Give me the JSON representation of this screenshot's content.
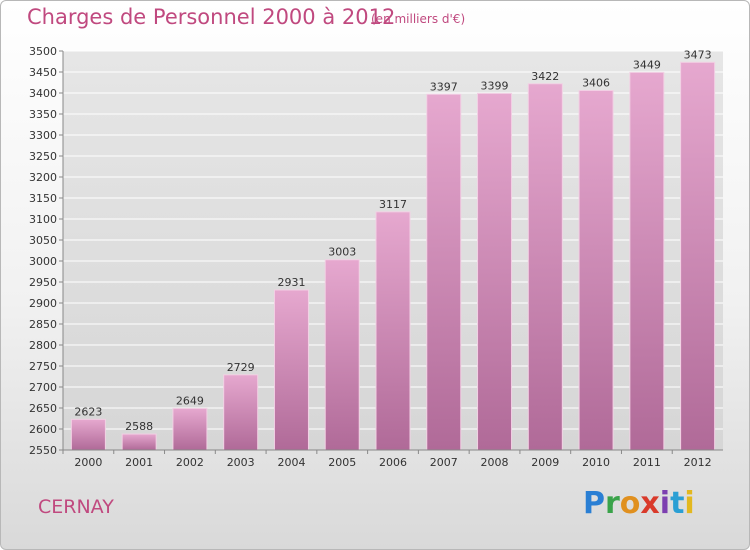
{
  "header": {
    "title": "Charges de Personnel 2000 à 2012",
    "subtitle": "(en milliers d'€)"
  },
  "footer": {
    "place": "CERNAY",
    "logo_text": "Proxiti"
  },
  "colors": {
    "accent": "#c0497f",
    "bar_top": "#e6a8cf",
    "bar_bottom": "#b06a98",
    "bar_edge": "#f2d0e4",
    "grid": "#ffffff",
    "axis": "#888888"
  },
  "chart_data": {
    "type": "bar",
    "categories": [
      "2000",
      "2001",
      "2002",
      "2003",
      "2004",
      "2005",
      "2006",
      "2007",
      "2008",
      "2009",
      "2010",
      "2011",
      "2012"
    ],
    "values": [
      2623,
      2588,
      2649,
      2729,
      2931,
      3003,
      3117,
      3397,
      3399,
      3422,
      3406,
      3449,
      3473
    ],
    "ylim": [
      2550,
      3500
    ],
    "yticks": [
      2550,
      2600,
      2650,
      2700,
      2750,
      2800,
      2850,
      2900,
      2950,
      3000,
      3050,
      3100,
      3150,
      3200,
      3250,
      3300,
      3350,
      3400,
      3450,
      3500
    ],
    "grid": true,
    "data_labels": true
  }
}
